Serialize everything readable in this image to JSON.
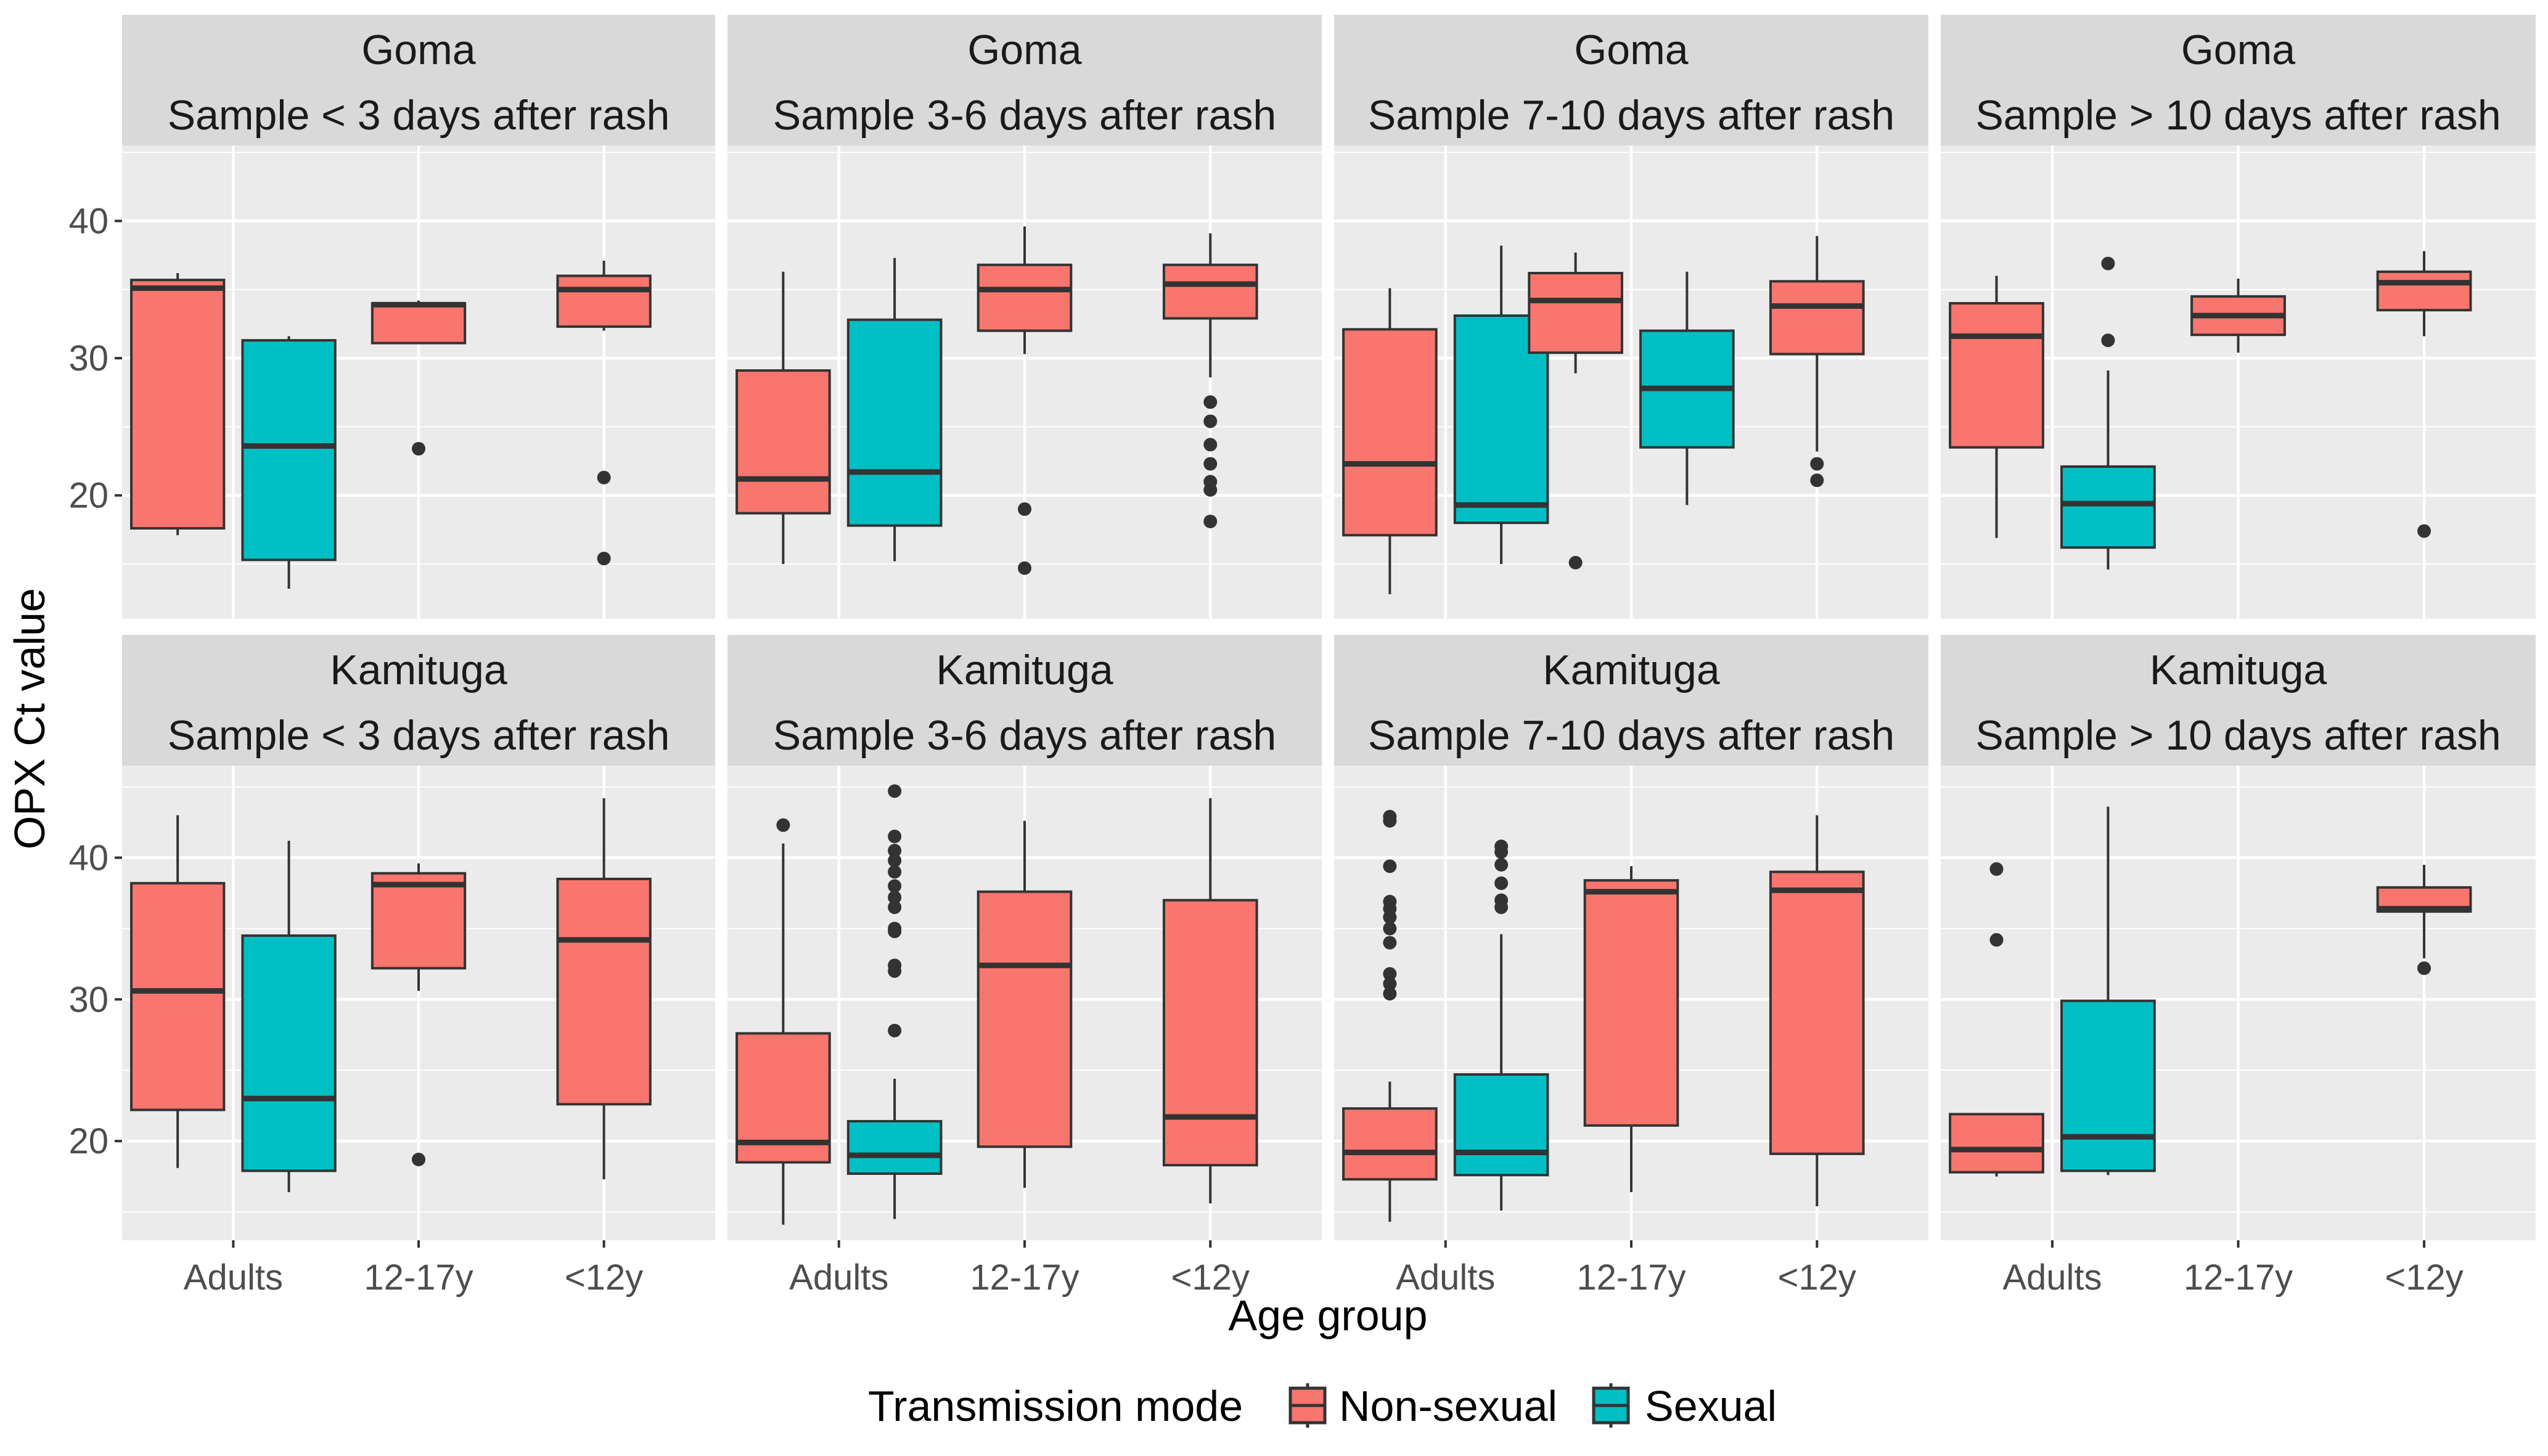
{
  "chart_data": {
    "type": "boxplot",
    "xlabel": "Age group",
    "ylabel": "OPX Ct value",
    "categories": [
      "Adults",
      "12-17y",
      "<12y"
    ],
    "y_ticks": [
      20,
      30,
      40
    ],
    "ylim_top": [
      11,
      45.5
    ],
    "ylim_bottom": [
      13,
      46.5
    ],
    "grid": true,
    "legend": {
      "title": "Transmission mode",
      "position": "bottom",
      "entries": [
        {
          "name": "Non-sexual",
          "color": "#F8766D"
        },
        {
          "name": "Sexual",
          "color": "#00BFC4"
        }
      ]
    },
    "colors": {
      "non_sexual": "#F8766D",
      "sexual": "#00BFC4"
    },
    "panels": [
      {
        "site": "Goma",
        "window": "Sample < 3 days after rash",
        "row": 0,
        "col": 0,
        "boxes": [
          {
            "category": "Adults",
            "mode": "Non-sexual",
            "min": 17.1,
            "q1": 17.6,
            "median": 35.1,
            "q3": 35.7,
            "max": 36.2,
            "outliers": []
          },
          {
            "category": "Adults",
            "mode": "Sexual",
            "min": 13.2,
            "q1": 15.3,
            "median": 23.6,
            "q3": 31.3,
            "max": 31.6,
            "outliers": []
          },
          {
            "category": "12-17y",
            "mode": "Non-sexual",
            "min": 31.1,
            "q1": 31.1,
            "median": 33.9,
            "q3": 34.0,
            "max": 34.2,
            "outliers": [
              23.4
            ]
          },
          {
            "category": "<12y",
            "mode": "Non-sexual",
            "min": 32.0,
            "q1": 32.3,
            "median": 35.0,
            "q3": 36.0,
            "max": 37.1,
            "outliers": [
              21.3,
              15.4
            ]
          }
        ]
      },
      {
        "site": "Goma",
        "window": "Sample 3-6 days after rash",
        "row": 0,
        "col": 1,
        "boxes": [
          {
            "category": "Adults",
            "mode": "Non-sexual",
            "min": 15.0,
            "q1": 18.7,
            "median": 21.2,
            "q3": 29.1,
            "max": 36.3,
            "outliers": []
          },
          {
            "category": "Adults",
            "mode": "Sexual",
            "min": 15.2,
            "q1": 17.8,
            "median": 21.7,
            "q3": 32.8,
            "max": 37.3,
            "outliers": []
          },
          {
            "category": "12-17y",
            "mode": "Non-sexual",
            "min": 30.3,
            "q1": 32.0,
            "median": 35.0,
            "q3": 36.8,
            "max": 39.6,
            "outliers": [
              19.0,
              14.7
            ]
          },
          {
            "category": "<12y",
            "mode": "Non-sexual",
            "min": 28.6,
            "q1": 32.9,
            "median": 35.4,
            "q3": 36.8,
            "max": 39.1,
            "outliers": [
              26.8,
              25.4,
              23.7,
              22.3,
              21.0,
              20.4,
              18.1
            ]
          }
        ]
      },
      {
        "site": "Goma",
        "window": "Sample 7-10 days after rash",
        "row": 0,
        "col": 2,
        "boxes": [
          {
            "category": "Adults",
            "mode": "Non-sexual",
            "min": 12.8,
            "q1": 17.1,
            "median": 22.3,
            "q3": 32.1,
            "max": 35.1,
            "outliers": []
          },
          {
            "category": "Adults",
            "mode": "Sexual",
            "min": 15.0,
            "q1": 18.0,
            "median": 19.3,
            "q3": 33.1,
            "max": 38.2,
            "outliers": []
          },
          {
            "category": "12-17y",
            "mode": "Non-sexual",
            "min": 28.9,
            "q1": 30.4,
            "median": 34.2,
            "q3": 36.2,
            "max": 37.7,
            "outliers": [
              15.1
            ]
          },
          {
            "category": "12-17y",
            "mode": "Sexual",
            "min": 19.3,
            "q1": 23.5,
            "median": 27.8,
            "q3": 32.0,
            "max": 36.3,
            "outliers": []
          },
          {
            "category": "<12y",
            "mode": "Non-sexual",
            "min": 23.2,
            "q1": 30.3,
            "median": 33.8,
            "q3": 35.6,
            "max": 38.9,
            "outliers": [
              22.3,
              21.1
            ]
          }
        ]
      },
      {
        "site": "Goma",
        "window": "Sample > 10 days after rash",
        "row": 0,
        "col": 3,
        "boxes": [
          {
            "category": "Adults",
            "mode": "Non-sexual",
            "min": 16.9,
            "q1": 23.5,
            "median": 31.6,
            "q3": 34.0,
            "max": 36.0,
            "outliers": []
          },
          {
            "category": "Adults",
            "mode": "Sexual",
            "min": 14.6,
            "q1": 16.2,
            "median": 19.4,
            "q3": 22.1,
            "max": 29.1,
            "outliers": [
              36.9,
              31.3
            ]
          },
          {
            "category": "12-17y",
            "mode": "Non-sexual",
            "min": 30.4,
            "q1": 31.7,
            "median": 33.1,
            "q3": 34.5,
            "max": 35.8,
            "outliers": []
          },
          {
            "category": "<12y",
            "mode": "Non-sexual",
            "min": 31.6,
            "q1": 33.5,
            "median": 35.5,
            "q3": 36.3,
            "max": 37.8,
            "outliers": [
              17.4
            ]
          }
        ]
      },
      {
        "site": "Kamituga",
        "window": "Sample < 3 days after rash",
        "row": 1,
        "col": 0,
        "boxes": [
          {
            "category": "Adults",
            "mode": "Non-sexual",
            "min": 18.1,
            "q1": 22.2,
            "median": 30.6,
            "q3": 38.2,
            "max": 43.0,
            "outliers": []
          },
          {
            "category": "Adults",
            "mode": "Sexual",
            "min": 16.4,
            "q1": 17.9,
            "median": 23.0,
            "q3": 34.5,
            "max": 41.2,
            "outliers": []
          },
          {
            "category": "12-17y",
            "mode": "Non-sexual",
            "min": 30.6,
            "q1": 32.2,
            "median": 38.1,
            "q3": 38.9,
            "max": 39.6,
            "outliers": [
              18.7
            ]
          },
          {
            "category": "<12y",
            "mode": "Non-sexual",
            "min": 17.3,
            "q1": 22.6,
            "median": 34.2,
            "q3": 38.5,
            "max": 44.2,
            "outliers": []
          }
        ]
      },
      {
        "site": "Kamituga",
        "window": "Sample 3-6 days after rash",
        "row": 1,
        "col": 1,
        "boxes": [
          {
            "category": "Adults",
            "mode": "Non-sexual",
            "min": 14.1,
            "q1": 18.5,
            "median": 19.9,
            "q3": 27.6,
            "max": 41.0,
            "outliers": [
              42.3
            ]
          },
          {
            "category": "Adults",
            "mode": "Sexual",
            "min": 14.5,
            "q1": 17.7,
            "median": 19.0,
            "q3": 21.4,
            "max": 24.4,
            "outliers": [
              44.7,
              41.5,
              40.5,
              39.8,
              39.0,
              38.0,
              37.2,
              36.5,
              35.0,
              34.8,
              32.4,
              32.0,
              27.8
            ]
          },
          {
            "category": "12-17y",
            "mode": "Non-sexual",
            "min": 16.7,
            "q1": 19.6,
            "median": 32.4,
            "q3": 37.6,
            "max": 42.6,
            "outliers": []
          },
          {
            "category": "<12y",
            "mode": "Non-sexual",
            "min": 15.6,
            "q1": 18.3,
            "median": 21.7,
            "q3": 37.0,
            "max": 44.2,
            "outliers": []
          }
        ]
      },
      {
        "site": "Kamituga",
        "window": "Sample 7-10 days after rash",
        "row": 1,
        "col": 2,
        "boxes": [
          {
            "category": "Adults",
            "mode": "Non-sexual",
            "min": 14.3,
            "q1": 17.3,
            "median": 19.2,
            "q3": 22.3,
            "max": 24.2,
            "outliers": [
              42.9,
              42.6,
              39.4,
              36.9,
              36.4,
              35.8,
              35.0,
              34.0,
              31.8,
              31.1,
              30.4
            ]
          },
          {
            "category": "Adults",
            "mode": "Sexual",
            "min": 15.1,
            "q1": 17.6,
            "median": 19.2,
            "q3": 24.7,
            "max": 34.6,
            "outliers": [
              40.8,
              40.4,
              39.5,
              38.2,
              37.0,
              36.5
            ]
          },
          {
            "category": "12-17y",
            "mode": "Non-sexual",
            "min": 16.4,
            "q1": 21.1,
            "median": 37.6,
            "q3": 38.4,
            "max": 39.4,
            "outliers": []
          },
          {
            "category": "<12y",
            "mode": "Non-sexual",
            "min": 15.4,
            "q1": 19.1,
            "median": 37.7,
            "q3": 39.0,
            "max": 43.0,
            "outliers": []
          }
        ]
      },
      {
        "site": "Kamituga",
        "window": "Sample > 10 days after rash",
        "row": 1,
        "col": 3,
        "boxes": [
          {
            "category": "Adults",
            "mode": "Non-sexual",
            "min": 17.5,
            "q1": 17.8,
            "median": 19.4,
            "q3": 21.9,
            "max": 21.9,
            "outliers": [
              39.2,
              34.2
            ]
          },
          {
            "category": "Adults",
            "mode": "Sexual",
            "min": 17.6,
            "q1": 17.9,
            "median": 20.3,
            "q3": 29.9,
            "max": 43.6,
            "outliers": []
          },
          {
            "category": "<12y",
            "mode": "Non-sexual",
            "min": 32.9,
            "q1": 36.2,
            "median": 36.4,
            "q3": 37.9,
            "max": 39.5,
            "outliers": [
              32.2
            ]
          }
        ]
      }
    ]
  }
}
